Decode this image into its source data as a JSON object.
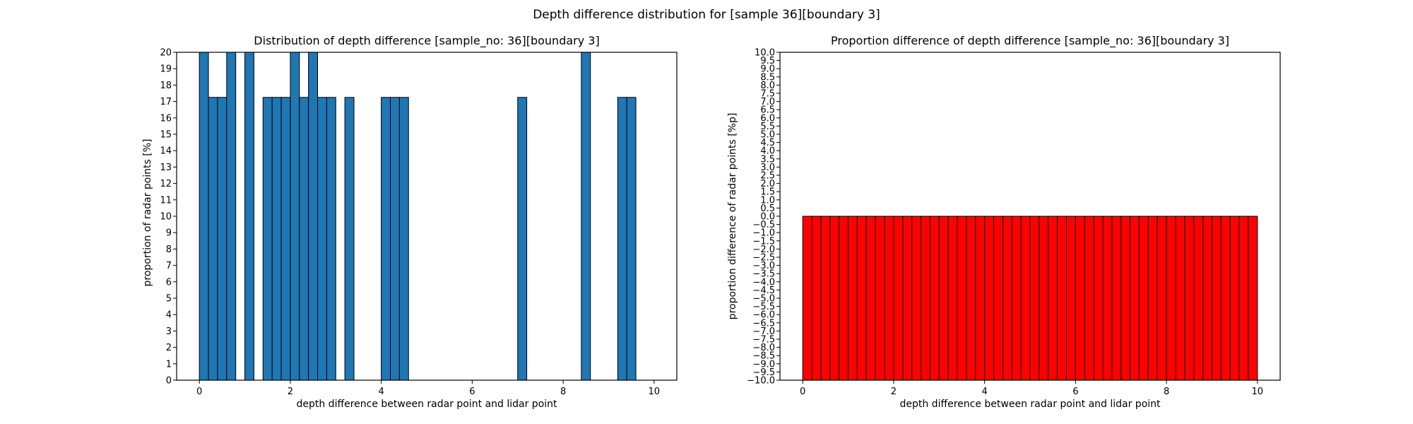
{
  "figure": {
    "suptitle": "Depth difference distribution for [sample 36][boundary 3]"
  },
  "chart_data": [
    {
      "type": "bar",
      "title": "Distribution of depth difference [sample_no: 36][boundary 3]",
      "xlabel": "depth difference between radar point and lidar point",
      "ylabel": "proportion of radar points [%]",
      "xlim": [
        -0.5,
        10.5
      ],
      "ylim": [
        0,
        20
      ],
      "xticks": [
        0,
        2,
        4,
        6,
        8,
        10
      ],
      "yticks": [
        0,
        1,
        2,
        3,
        4,
        5,
        6,
        7,
        8,
        9,
        10,
        11,
        12,
        13,
        14,
        15,
        16,
        17,
        18,
        19,
        20
      ],
      "bin_width": 0.2,
      "x": [
        0.0,
        0.2,
        0.4,
        0.6,
        1.0,
        1.4,
        1.6,
        1.8,
        2.0,
        2.2,
        2.4,
        2.6,
        2.8,
        3.2,
        4.0,
        4.2,
        4.4,
        7.0,
        8.4,
        9.2,
        9.4
      ],
      "values": [
        20,
        17.25,
        17.25,
        20,
        20,
        17.25,
        17.25,
        17.25,
        20,
        17.25,
        20,
        17.25,
        17.25,
        17.25,
        17.25,
        17.25,
        17.25,
        17.25,
        20,
        17.25,
        17.25
      ],
      "bar_color": "#1f77b4",
      "edge_color": "#000000",
      "grid": false
    },
    {
      "type": "bar",
      "title": "Proportion difference of depth difference [sample_no: 36][boundary 3]",
      "xlabel": "depth difference between radar point and lidar point",
      "ylabel": "proportion difference of radar points [%p]",
      "xlim": [
        -0.5,
        10.5
      ],
      "ylim": [
        -10,
        10
      ],
      "xticks": [
        0,
        2,
        4,
        6,
        8,
        10
      ],
      "yticks": [
        -10.0,
        -9.5,
        -9.0,
        -8.5,
        -8.0,
        -7.5,
        -7.0,
        -6.5,
        -6.0,
        -5.5,
        -5.0,
        -4.5,
        -4.0,
        -3.5,
        -3.0,
        -2.5,
        -2.0,
        -1.5,
        -1.0,
        -0.5,
        0.0,
        0.5,
        1.0,
        1.5,
        2.0,
        2.5,
        3.0,
        3.5,
        4.0,
        4.5,
        5.0,
        5.5,
        6.0,
        6.5,
        7.0,
        7.5,
        8.0,
        8.5,
        9.0,
        9.5,
        10.0
      ],
      "bin_width": 0.2,
      "bins_start": 0,
      "bins_end": 10,
      "values_note_free": true,
      "values": [
        0,
        -10
      ],
      "bar_from": 0,
      "bar_to": -10,
      "bar_color": "#ff0000",
      "edge_color": "#000000",
      "grid": false
    }
  ]
}
